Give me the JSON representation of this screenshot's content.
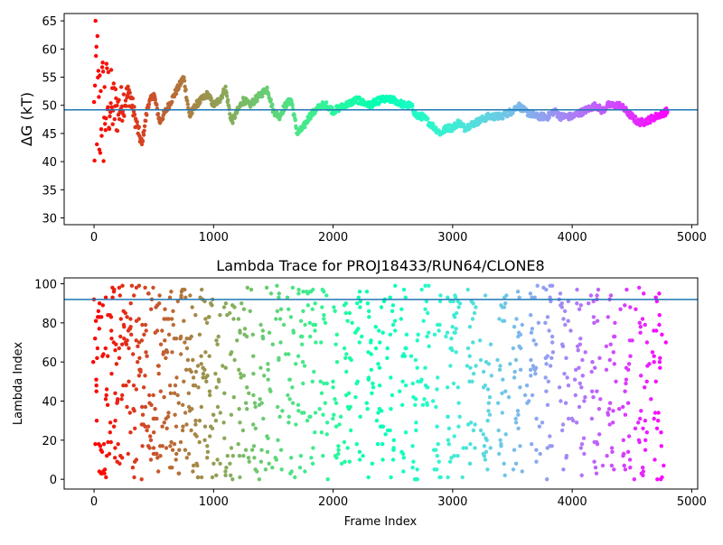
{
  "chart_data": [
    {
      "type": "scatter",
      "title": "",
      "xlabel": "",
      "ylabel": "ΔG (kT)",
      "xlim": [
        -250,
        5050
      ],
      "ylim": [
        28.8,
        66.3
      ],
      "xticks": [
        0,
        1000,
        2000,
        3000,
        4000,
        5000
      ],
      "yticks": [
        30,
        35,
        40,
        45,
        50,
        55,
        60,
        65
      ],
      "hline": 49.2,
      "hline_color": "#1f77b4",
      "colormap": "rainbow (late frames violet → early frames red)",
      "point_count": 4800,
      "series": [
        {
          "x": [
            0,
            20,
            40,
            60,
            80,
            100,
            120,
            150,
            200,
            250,
            300,
            350,
            400,
            450,
            500,
            550,
            600,
            650,
            700,
            750,
            800,
            850,
            900,
            950,
            1000,
            1050,
            1100,
            1150,
            1200,
            1250,
            1300,
            1350,
            1400,
            1450,
            1500,
            1550,
            1600,
            1650,
            1700,
            1750,
            1800,
            1850,
            1900,
            1950,
            2000,
            2100,
            2200,
            2300,
            2400,
            2500,
            2600,
            2650,
            2700,
            2750,
            2800,
            2850,
            2900,
            2950,
            3000,
            3050,
            3100,
            3200,
            3300,
            3400,
            3500,
            3550,
            3600,
            3700,
            3800,
            3850,
            3900,
            4000,
            4100,
            4200,
            4250,
            4300,
            4350,
            4400,
            4450,
            4500,
            4550,
            4600,
            4700,
            4800
          ],
          "y": [
            45,
            55,
            45,
            52,
            48,
            50,
            51,
            50,
            49,
            51,
            52,
            47,
            43,
            50,
            52,
            47,
            49,
            51,
            53,
            55,
            48,
            50,
            51,
            52,
            50,
            51,
            53,
            47,
            49,
            51,
            50,
            51,
            52,
            53,
            49,
            48,
            50,
            51,
            45,
            46,
            48,
            49,
            50,
            50,
            49,
            50,
            51,
            50,
            51,
            51,
            50,
            50,
            48,
            48,
            47,
            46,
            45,
            46,
            46,
            47,
            46,
            47,
            48,
            48,
            49,
            50,
            49,
            48,
            48,
            49,
            48,
            48,
            49,
            50,
            49,
            50,
            50,
            50,
            49,
            48,
            47,
            47,
            48,
            49
          ]
        }
      ]
    },
    {
      "type": "scatter",
      "title": "Lambda Trace for PROJ18433/RUN64/CLONE8",
      "xlabel": "Frame Index",
      "ylabel": "Lambda Index",
      "xlim": [
        -250,
        5050
      ],
      "ylim": [
        -5,
        103
      ],
      "xticks": [
        0,
        1000,
        2000,
        3000,
        4000,
        5000
      ],
      "yticks": [
        0,
        20,
        40,
        60,
        80,
        100
      ],
      "hline": 92,
      "hline_color": "#1f77b4",
      "colormap": "rainbow (late frames violet → early frames red)",
      "point_count": 4800,
      "value_range": [
        0,
        99
      ]
    }
  ]
}
